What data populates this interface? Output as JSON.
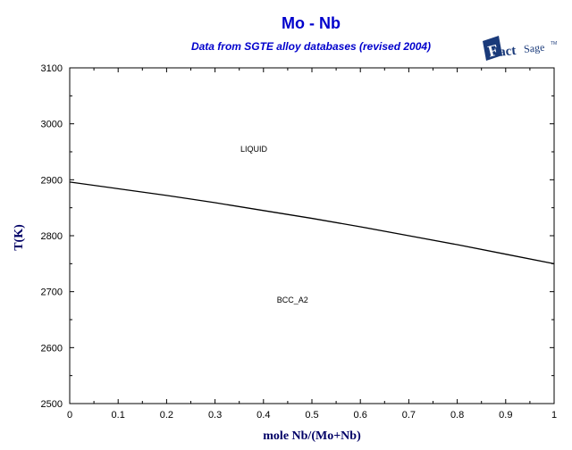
{
  "chart_data": {
    "type": "line",
    "title": "Mo - Nb",
    "subtitle": "Data from SGTE alloy databases (revised 2004)",
    "xlabel": "mole Nb/(Mo+Nb)",
    "ylabel": "T(K)",
    "xlim": [
      0,
      1
    ],
    "ylim": [
      2500,
      3100
    ],
    "xticks": [
      "0",
      "0.1",
      "0.2",
      "0.3",
      "0.4",
      "0.5",
      "0.6",
      "0.7",
      "0.8",
      "0.9",
      "1"
    ],
    "yticks": [
      "2500",
      "2600",
      "2700",
      "2800",
      "2900",
      "3000",
      "3100"
    ],
    "series": [
      {
        "x": [
          0,
          0.1,
          0.2,
          0.3,
          0.4,
          0.5,
          0.6,
          0.7,
          0.8,
          0.9,
          1.0
        ],
        "y": [
          2896,
          2884,
          2872,
          2859,
          2845,
          2831,
          2816,
          2800,
          2784,
          2767,
          2750
        ]
      }
    ],
    "annotations": [
      {
        "text": "LIQUID",
        "x": 0.38,
        "y": 2950
      },
      {
        "text": "BCC_A2",
        "x": 0.46,
        "y": 2680
      }
    ],
    "grid": false
  },
  "logo": {
    "text": "FactSage",
    "mark": "TM"
  }
}
